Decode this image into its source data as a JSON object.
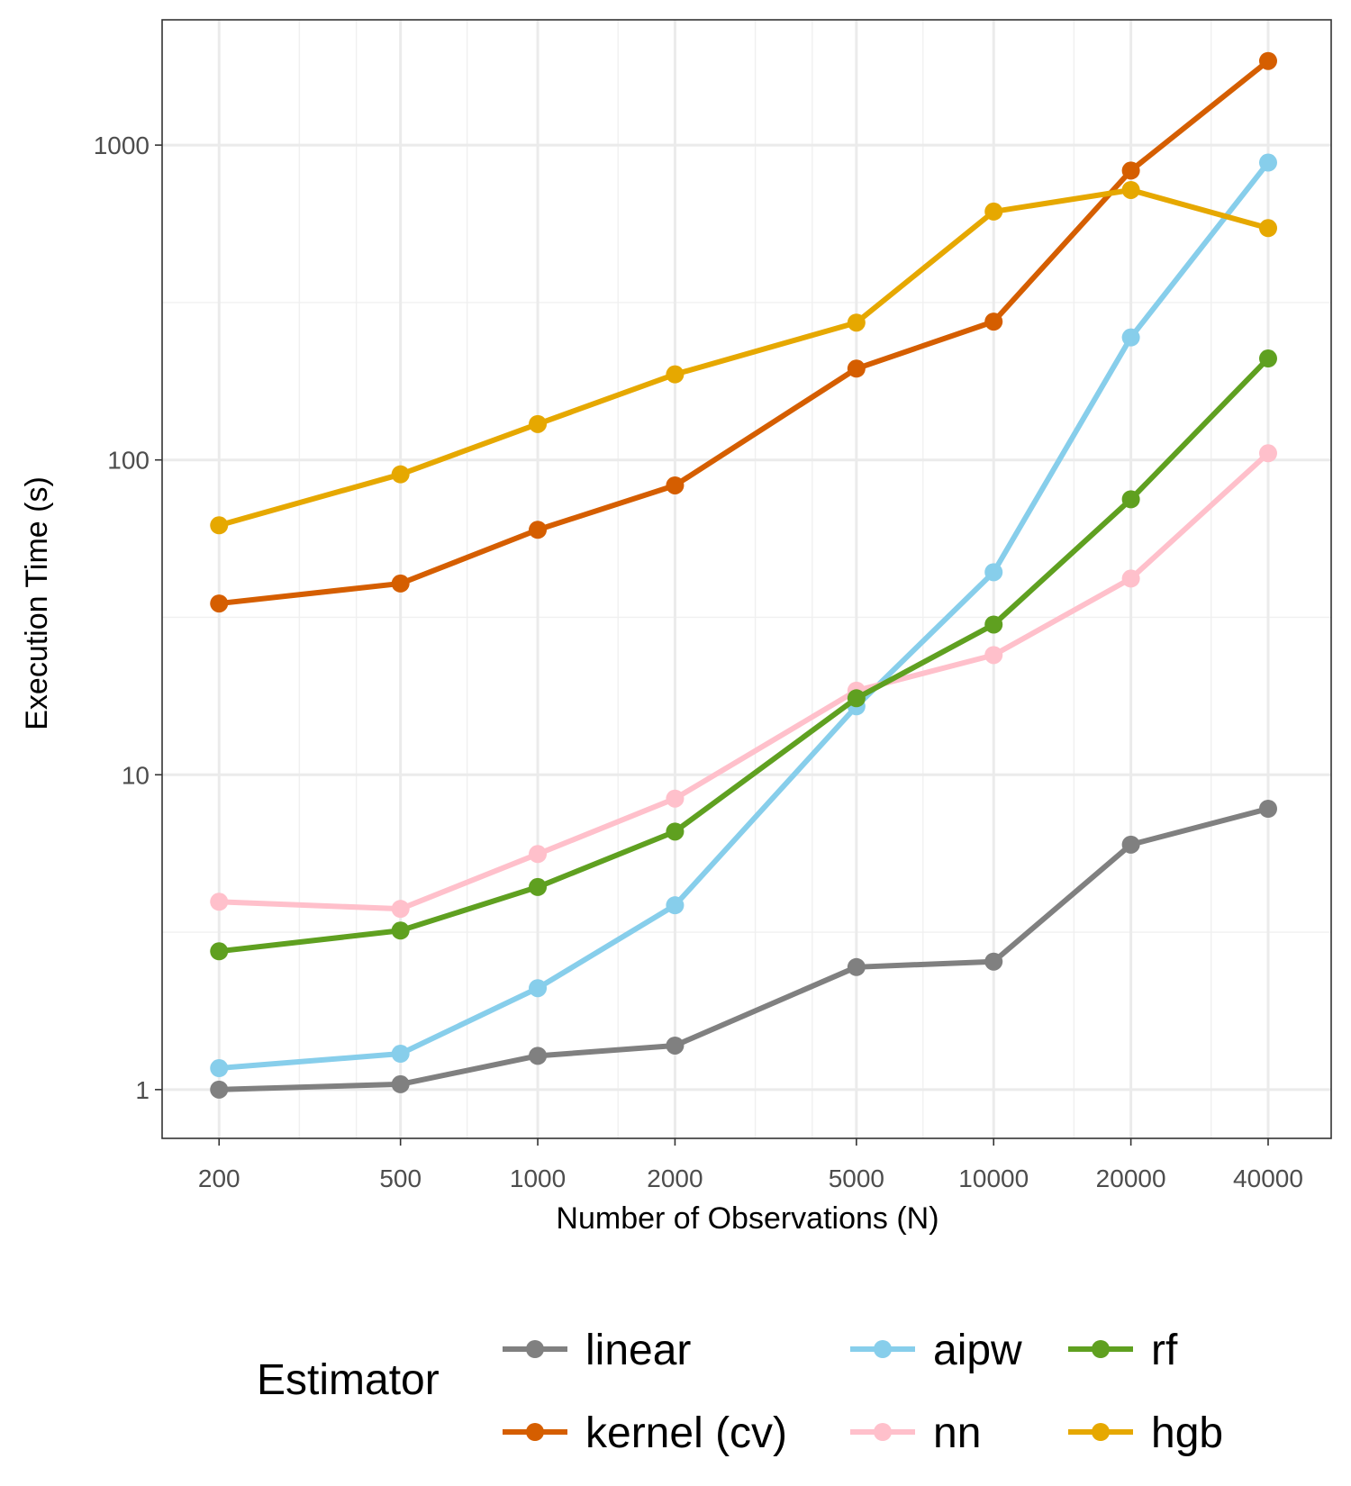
{
  "chart_data": {
    "type": "line",
    "title": "",
    "xlabel": "Number of Observations (N)",
    "ylabel": "Execution Time (s)",
    "xscale": "log10",
    "yscale": "log10",
    "x": [
      200,
      500,
      1000,
      2000,
      5000,
      10000,
      20000,
      40000
    ],
    "x_tick_labels": [
      "200",
      "500",
      "1000",
      "2000",
      "5000",
      "10000",
      "20000",
      "40000"
    ],
    "y_ticks": [
      1,
      10,
      100,
      1000
    ],
    "y_tick_labels": [
      "1",
      "10",
      "100",
      "1000"
    ],
    "xlim": [
      150,
      55000
    ],
    "ylim": [
      0.7,
      2500
    ],
    "grid": true,
    "legend": {
      "title": "Estimator",
      "placement": "bottom"
    },
    "series": [
      {
        "name": "linear",
        "color": "#808080",
        "values": [
          1.0,
          1.04,
          1.28,
          1.38,
          2.45,
          2.55,
          6.0,
          7.8
        ]
      },
      {
        "name": "kernel (cv)",
        "color": "#D55E00",
        "values": [
          35,
          40.5,
          60,
          83,
          195,
          275,
          830,
          1850
        ]
      },
      {
        "name": "aipw",
        "color": "#87CEEB",
        "values": [
          1.17,
          1.3,
          2.1,
          3.85,
          16.5,
          44,
          245,
          880
        ]
      },
      {
        "name": "nn",
        "color": "#FFC0CB",
        "values": [
          3.95,
          3.75,
          5.6,
          8.4,
          18.5,
          24,
          42,
          105
        ]
      },
      {
        "name": "rf",
        "color": "#5FA020",
        "values": [
          2.75,
          3.2,
          4.4,
          6.6,
          17.5,
          30,
          75,
          210
        ]
      },
      {
        "name": "hgb",
        "color": "#E6A800",
        "values": [
          62,
          90,
          130,
          187,
          273,
          615,
          720,
          545
        ]
      }
    ]
  }
}
